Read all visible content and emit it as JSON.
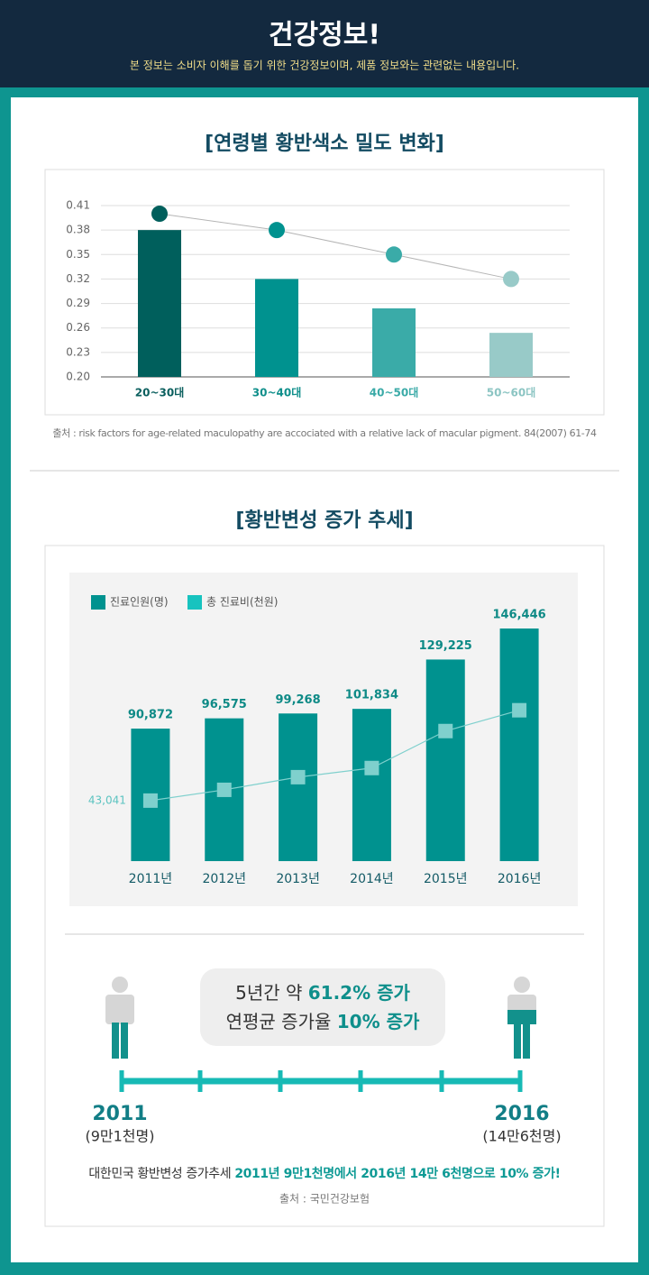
{
  "header": {
    "title": "건강정보!",
    "subtitle": "본 정보는 소비자 이해를 돕기 위한 건강정보이며, 제품 정보와는 관련없는 내용입니다."
  },
  "chart_data": [
    {
      "type": "bar",
      "title": "[연령별 황반색소 밀도 변화]",
      "categories": [
        "20~30대",
        "30~40대",
        "40~50대",
        "50~60대"
      ],
      "category_colors": [
        "#0b5f5e",
        "#0f8f8b",
        "#3aaaa7",
        "#8cc5c3"
      ],
      "series": [
        {
          "type": "bar",
          "colors": [
            "#005f5c",
            "#00928f",
            "#3aaba8",
            "#98cac8"
          ],
          "values": [
            0.38,
            0.32,
            0.284,
            0.254
          ]
        },
        {
          "type": "line",
          "color": "#b5b5b5",
          "point_colors": [
            "#005f5c",
            "#00928f",
            "#3aaba8",
            "#98cac8"
          ],
          "values": [
            0.4,
            0.38,
            0.35,
            0.32
          ]
        }
      ],
      "ylim": [
        0.2,
        0.41
      ],
      "yticks": [
        {
          "value": 0.2,
          "label": "0.20"
        },
        0.23,
        0.26,
        0.29,
        0.32,
        0.35,
        0.38,
        0.41
      ],
      "grid": true
    },
    {
      "type": "bar",
      "title": "[황반변성 증가 추세]",
      "categories": [
        "2011년",
        "2012년",
        "2013년",
        "2014년",
        "2015년",
        "2016년"
      ],
      "series": [
        {
          "type": "bar",
          "name": "진료인원(명)",
          "color": "#00928f",
          "values": [
            90872,
            96575,
            99268,
            101834,
            129225,
            146446
          ],
          "value_labels": [
            "90,872",
            "96,575",
            "99,268",
            "101,834",
            "129,225",
            "146,446"
          ]
        },
        {
          "type": "line",
          "name": "총 진료비(천원)",
          "axis": "y2",
          "color": "#7fd0cd",
          "values": [
            43041,
            50700,
            59700,
            66200,
            92500,
            107300
          ],
          "value_labels": [
            "43,041",
            null,
            null,
            null,
            null,
            null
          ]
        }
      ],
      "ylim": [
        17300,
        175000
      ],
      "y2lim": [
        0,
        202000
      ]
    }
  ],
  "sources": [
    "출처 : risk factors for age-related maculopathy are accociated with a relative lack of macular pigment. 84(2007) 61-74",
    "출처 : 국민건강보험"
  ],
  "highlight": {
    "line1": [
      "5년간 약 ",
      "61.2% 증가"
    ],
    "line2": [
      "연평균 증가율 ",
      "10% 증가"
    ]
  },
  "timeline": {
    "start_year": "2011",
    "start_count": "(9만1천명)",
    "end_year": "2016",
    "end_count": "(14만6천명)"
  },
  "summary": [
    "대한민국 황반변성 증가추세 ",
    "2011년 9만1천명에서 2016년 14만 6천명으로 10% 증가!"
  ]
}
